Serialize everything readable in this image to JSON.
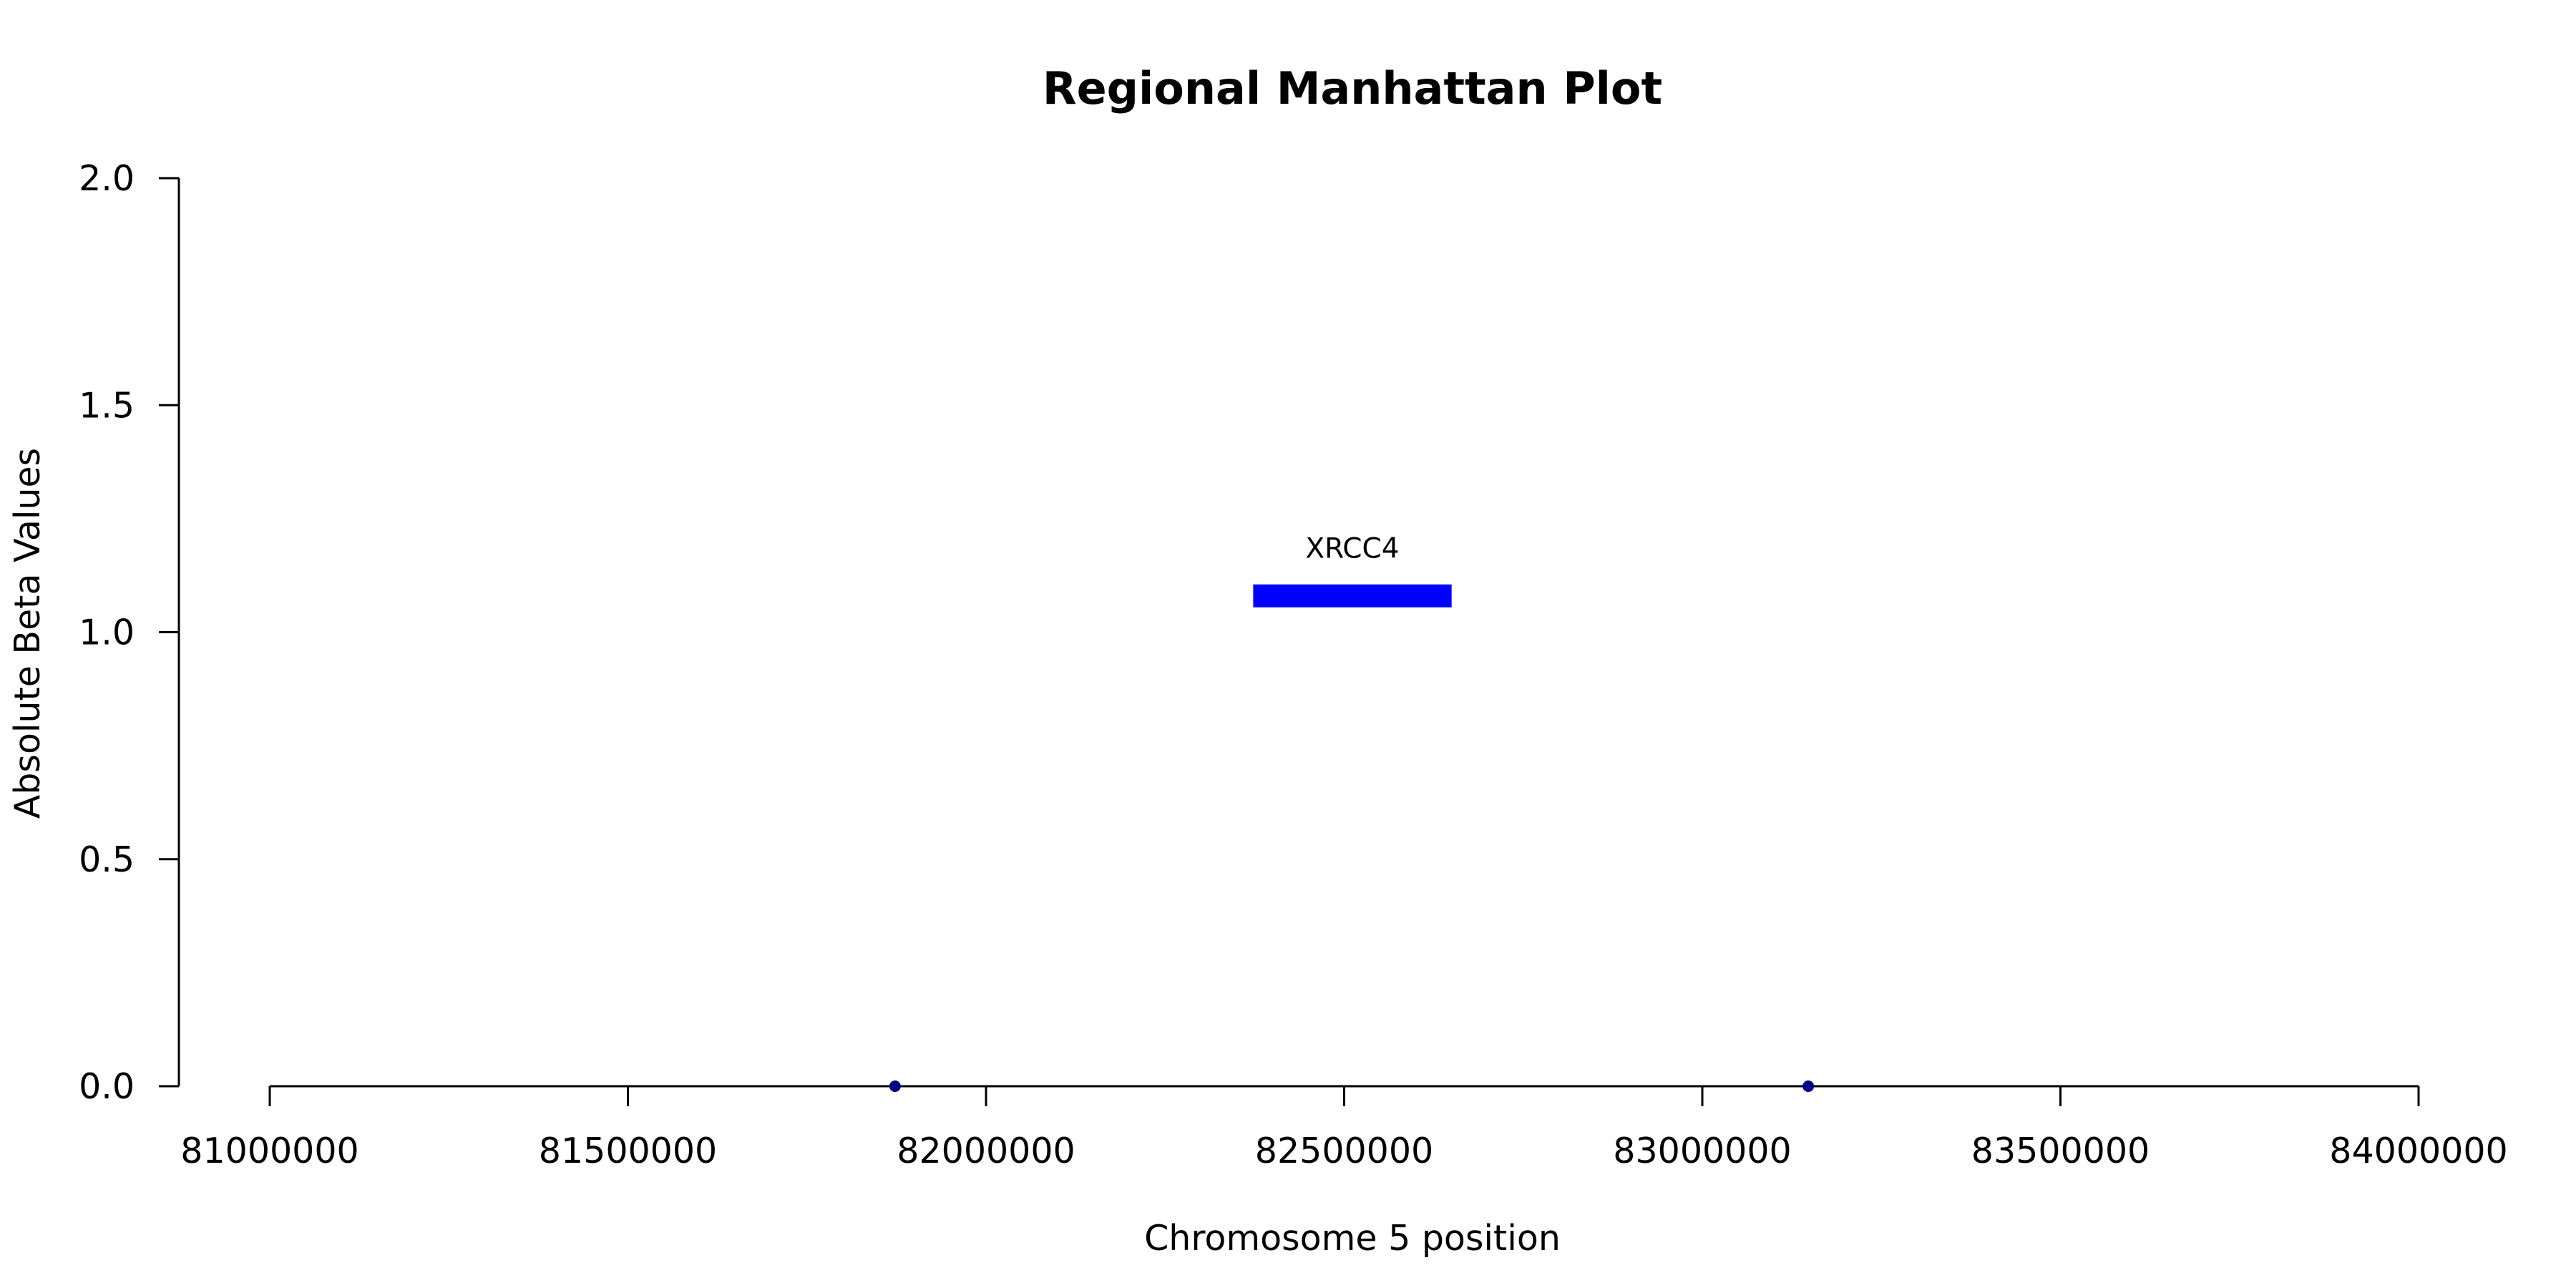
{
  "chart_data": {
    "type": "scatter",
    "title": "Regional Manhattan Plot",
    "xlabel": "Chromosome 5 position",
    "ylabel": "Absolute Beta Values",
    "xlim": [
      81000000,
      84000000
    ],
    "ylim": [
      0,
      2
    ],
    "x_ticks": [
      81000000,
      81500000,
      82000000,
      82500000,
      83000000,
      83500000,
      84000000
    ],
    "x_tick_labels": [
      "81000000",
      "81500000",
      "82000000",
      "82500000",
      "83000000",
      "83500000",
      "84000000"
    ],
    "y_ticks": [
      0,
      0.5,
      1,
      1.5,
      2
    ],
    "y_tick_labels": [
      "0.0",
      "0.5",
      "1.0",
      "1.5",
      "2.0"
    ],
    "grid": false,
    "points": [
      {
        "x": 81873000,
        "y": 0,
        "color": "#00008b"
      },
      {
        "x": 83148000,
        "y": 0,
        "color": "#00008b"
      }
    ],
    "genes": [
      {
        "name": "XRCC4",
        "start": 82373000,
        "end": 82650000,
        "y": 1.08,
        "color": "#0000ff"
      }
    ]
  }
}
